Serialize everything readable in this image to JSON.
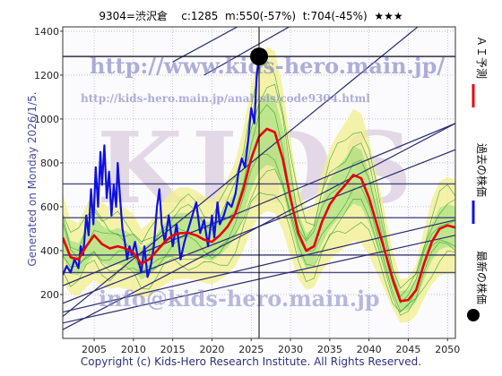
{
  "header": {
    "code_name": "9304=渋沢倉",
    "current": "c:1285",
    "min": "m:550(-57%)",
    "target": "t:704(-45%)",
    "stars": "★★★"
  },
  "side_label": "Generated on Monday 2026/1/5.",
  "watermarks": {
    "url": "http://www.kids-hero.main.jp/",
    "analysis_url": "http://kids-hero.main.jp/analysis/code9304.html",
    "brand": "KIDS",
    "email": "info@kids-hero.main.jp"
  },
  "legend": [
    {
      "label": "ＡＩ予測",
      "color": "#e8000b",
      "kind": "line"
    },
    {
      "label": "過去の株価",
      "color": "#1010e0",
      "kind": "line"
    },
    {
      "label": "最新の株価",
      "color": "#000000",
      "kind": "dot"
    }
  ],
  "footer": "Copyright (c) Kids-Hero Research Institute. All Rights Reserved.",
  "colors": {
    "past": "#1010e0",
    "forecast": "#e8000b",
    "band_fill": "#f2ef8c",
    "band_green": "#7fd86a",
    "trend": "#2a2a6e",
    "grid": "#9aa0b8"
  },
  "chart_data": {
    "type": "line",
    "x_range": [
      2001,
      2051
    ],
    "y_range": [
      0,
      1420
    ],
    "xticks": [
      2005,
      2010,
      2015,
      2020,
      2025,
      2030,
      2035,
      2040,
      2045,
      2050
    ],
    "yticks": [
      200,
      400,
      600,
      800,
      1000,
      1200,
      1400
    ],
    "grid": true,
    "latest": {
      "x": 2026.0,
      "y": 1285
    },
    "horizontal_levels": [
      1285,
      704,
      550,
      380,
      300
    ],
    "series": [
      {
        "values": [
          [
            2001.0,
            290
          ],
          [
            2001.5,
            330
          ],
          [
            2002.0,
            300
          ],
          [
            2002.5,
            360
          ],
          [
            2003.0,
            320
          ],
          [
            2003.3,
            420
          ],
          [
            2003.6,
            380
          ],
          [
            2004.0,
            560
          ],
          [
            2004.3,
            470
          ],
          [
            2004.6,
            680
          ],
          [
            2004.9,
            520
          ],
          [
            2005.2,
            780
          ],
          [
            2005.5,
            600
          ],
          [
            2005.8,
            850
          ],
          [
            2006.0,
            700
          ],
          [
            2006.3,
            880
          ],
          [
            2006.6,
            640
          ],
          [
            2006.9,
            760
          ],
          [
            2007.2,
            560
          ],
          [
            2007.5,
            700
          ],
          [
            2007.8,
            600
          ],
          [
            2008.0,
            800
          ],
          [
            2008.3,
            640
          ],
          [
            2008.6,
            500
          ],
          [
            2008.9,
            440
          ],
          [
            2009.2,
            360
          ],
          [
            2009.5,
            420
          ],
          [
            2009.8,
            380
          ],
          [
            2010.2,
            440
          ],
          [
            2010.6,
            360
          ],
          [
            2011.0,
            300
          ],
          [
            2011.4,
            420
          ],
          [
            2011.8,
            280
          ],
          [
            2012.2,
            330
          ],
          [
            2012.6,
            420
          ],
          [
            2013.0,
            600
          ],
          [
            2013.3,
            680
          ],
          [
            2013.6,
            520
          ],
          [
            2014.0,
            440
          ],
          [
            2014.5,
            560
          ],
          [
            2015.0,
            420
          ],
          [
            2015.5,
            520
          ],
          [
            2016.0,
            360
          ],
          [
            2016.5,
            440
          ],
          [
            2017.0,
            500
          ],
          [
            2017.5,
            560
          ],
          [
            2018.0,
            620
          ],
          [
            2018.5,
            480
          ],
          [
            2019.0,
            540
          ],
          [
            2019.5,
            420
          ],
          [
            2020.0,
            560
          ],
          [
            2020.3,
            460
          ],
          [
            2020.7,
            620
          ],
          [
            2021.0,
            520
          ],
          [
            2021.5,
            560
          ],
          [
            2022.0,
            620
          ],
          [
            2022.5,
            600
          ],
          [
            2023.0,
            660
          ],
          [
            2023.4,
            760
          ],
          [
            2023.8,
            820
          ],
          [
            2024.2,
            780
          ],
          [
            2024.6,
            900
          ],
          [
            2025.0,
            1050
          ],
          [
            2025.4,
            980
          ],
          [
            2025.7,
            1200
          ],
          [
            2026.0,
            1285
          ]
        ]
      },
      {
        "values": [
          [
            2001.0,
            460
          ],
          [
            2002.0,
            370
          ],
          [
            2003.0,
            360
          ],
          [
            2004.0,
            420
          ],
          [
            2005.0,
            470
          ],
          [
            2006.0,
            430
          ],
          [
            2007.0,
            410
          ],
          [
            2008.0,
            420
          ],
          [
            2009.0,
            410
          ],
          [
            2010.0,
            390
          ],
          [
            2011.0,
            340
          ],
          [
            2012.0,
            360
          ],
          [
            2013.0,
            400
          ],
          [
            2014.0,
            440
          ],
          [
            2015.0,
            470
          ],
          [
            2016.0,
            480
          ],
          [
            2017.0,
            480
          ],
          [
            2018.0,
            470
          ],
          [
            2019.0,
            450
          ],
          [
            2020.0,
            440
          ],
          [
            2021.0,
            470
          ],
          [
            2022.0,
            510
          ],
          [
            2023.0,
            570
          ],
          [
            2024.0,
            680
          ],
          [
            2025.0,
            820
          ],
          [
            2026.0,
            920
          ],
          [
            2027.0,
            955
          ],
          [
            2028.0,
            940
          ],
          [
            2029.0,
            820
          ],
          [
            2030.0,
            640
          ],
          [
            2031.0,
            480
          ],
          [
            2032.0,
            400
          ],
          [
            2033.0,
            420
          ],
          [
            2034.0,
            530
          ],
          [
            2035.0,
            610
          ],
          [
            2036.0,
            660
          ],
          [
            2037.0,
            700
          ],
          [
            2038.0,
            745
          ],
          [
            2039.0,
            730
          ],
          [
            2040.0,
            640
          ],
          [
            2041.0,
            520
          ],
          [
            2042.0,
            400
          ],
          [
            2043.0,
            270
          ],
          [
            2044.0,
            170
          ],
          [
            2045.0,
            175
          ],
          [
            2046.0,
            220
          ],
          [
            2047.0,
            340
          ],
          [
            2048.0,
            440
          ],
          [
            2049.0,
            500
          ],
          [
            2050.0,
            515
          ],
          [
            2051.0,
            505
          ]
        ]
      }
    ],
    "trend_lines": [
      {
        "p1": [
          2001,
          100
        ],
        "p2": [
          2051,
          1560
        ]
      },
      {
        "p1": [
          2001,
          40
        ],
        "p2": [
          2051,
          980
        ]
      },
      {
        "p1": [
          2001,
          240
        ],
        "p2": [
          2051,
          980
        ]
      },
      {
        "p1": [
          2001,
          160
        ],
        "p2": [
          2051,
          860
        ]
      },
      {
        "p1": [
          2001,
          120
        ],
        "p2": [
          2051,
          540
        ]
      },
      {
        "p1": [
          2001,
          70
        ],
        "p2": [
          2051,
          470
        ]
      },
      {
        "p1": [
          2019,
          1200
        ],
        "p2": [
          2051,
          1850
        ]
      },
      {
        "p1": [
          2015,
          1260
        ],
        "p2": [
          2051,
          1960
        ]
      }
    ]
  }
}
